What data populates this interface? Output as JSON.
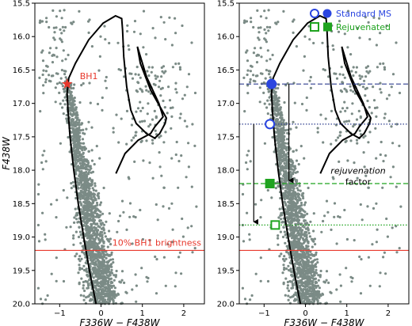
{
  "chart_data": [
    {
      "type": "scatter",
      "panel": "left",
      "xlabel": "F336W − F438W",
      "ylabel": "F438W",
      "xlim": [
        -1.6,
        2.5
      ],
      "ylim": [
        20.0,
        15.5
      ],
      "y_inverted": true,
      "x_ticks": [
        -1,
        0,
        1,
        2
      ],
      "x_tick_labels": [
        "−1",
        "0",
        "1",
        "2"
      ],
      "y_ticks": [
        15.5,
        16.0,
        16.5,
        17.0,
        17.5,
        18.0,
        18.5,
        19.0,
        19.5,
        20.0
      ],
      "y_tick_labels": [
        "15.5",
        "16.0",
        "16.5",
        "17.0",
        "17.5",
        "18.0",
        "18.5",
        "19.0",
        "19.5",
        "20.0"
      ],
      "point_color": "#7b8b86",
      "isochrone_color": "#000000",
      "markers": [
        {
          "name": "BH1",
          "label": "BH1",
          "x": -0.82,
          "y": 16.71,
          "shape": "star",
          "color": "#e8382c"
        }
      ],
      "hlines": [
        {
          "y": 19.2,
          "color": "#e8382c",
          "style": "solid",
          "label": "10% BH1 brightness"
        }
      ],
      "label_color": "#e8382c"
    },
    {
      "type": "scatter",
      "panel": "right",
      "xlabel": "F336W − F438W",
      "ylabel": "",
      "xlim": [
        -1.6,
        2.5
      ],
      "ylim": [
        20.0,
        15.5
      ],
      "y_inverted": true,
      "x_ticks": [
        -1,
        0,
        1,
        2
      ],
      "x_tick_labels": [
        "−1",
        "0",
        "1",
        "2"
      ],
      "y_ticks": [
        15.5,
        16.0,
        16.5,
        17.0,
        17.5,
        18.0,
        18.5,
        19.0,
        19.5,
        20.0
      ],
      "y_tick_labels": [
        "15.5",
        "16.0",
        "16.5",
        "17.0",
        "17.5",
        "18.0",
        "18.5",
        "19.0",
        "19.5",
        "20.0"
      ],
      "point_color": "#7b8b86",
      "legend": {
        "placement": "top-right",
        "entries": [
          {
            "label": "Standard MS",
            "color": "#2a45e0",
            "shape": "circle"
          },
          {
            "label": "Rejuvenated",
            "color": "#1fa31f",
            "shape": "square"
          }
        ]
      },
      "markers": [
        {
          "name": "standard-ms-filled",
          "x": -0.82,
          "y": 16.71,
          "shape": "circle",
          "filled": true,
          "color": "#2a45e0"
        },
        {
          "name": "standard-ms-open",
          "x": -0.86,
          "y": 17.31,
          "shape": "circle",
          "filled": false,
          "color": "#2a45e0"
        },
        {
          "name": "rejuvenated-filled",
          "x": -0.86,
          "y": 18.2,
          "shape": "square",
          "filled": true,
          "color": "#1fa31f"
        },
        {
          "name": "rejuvenated-open",
          "x": -0.73,
          "y": 18.82,
          "shape": "square",
          "filled": false,
          "color": "#1fa31f"
        }
      ],
      "hlines": [
        {
          "y": 16.71,
          "color": "#2f3f8f",
          "style": "dashed"
        },
        {
          "y": 17.31,
          "color": "#2f3f8f",
          "style": "dotted"
        },
        {
          "y": 18.2,
          "color": "#1fa31f",
          "style": "dashed"
        },
        {
          "y": 18.82,
          "color": "#1fa31f",
          "style": "dotted"
        },
        {
          "y": 19.2,
          "color": "#e8382c",
          "style": "solid"
        }
      ],
      "arrows": [
        {
          "x": -1.25,
          "y_from": 17.31,
          "y_to": 18.82
        },
        {
          "x": -0.4,
          "y_from": 16.71,
          "y_to": 18.2
        }
      ],
      "annotation": {
        "line1": "rejuvenation",
        "line2": "factor"
      }
    }
  ]
}
